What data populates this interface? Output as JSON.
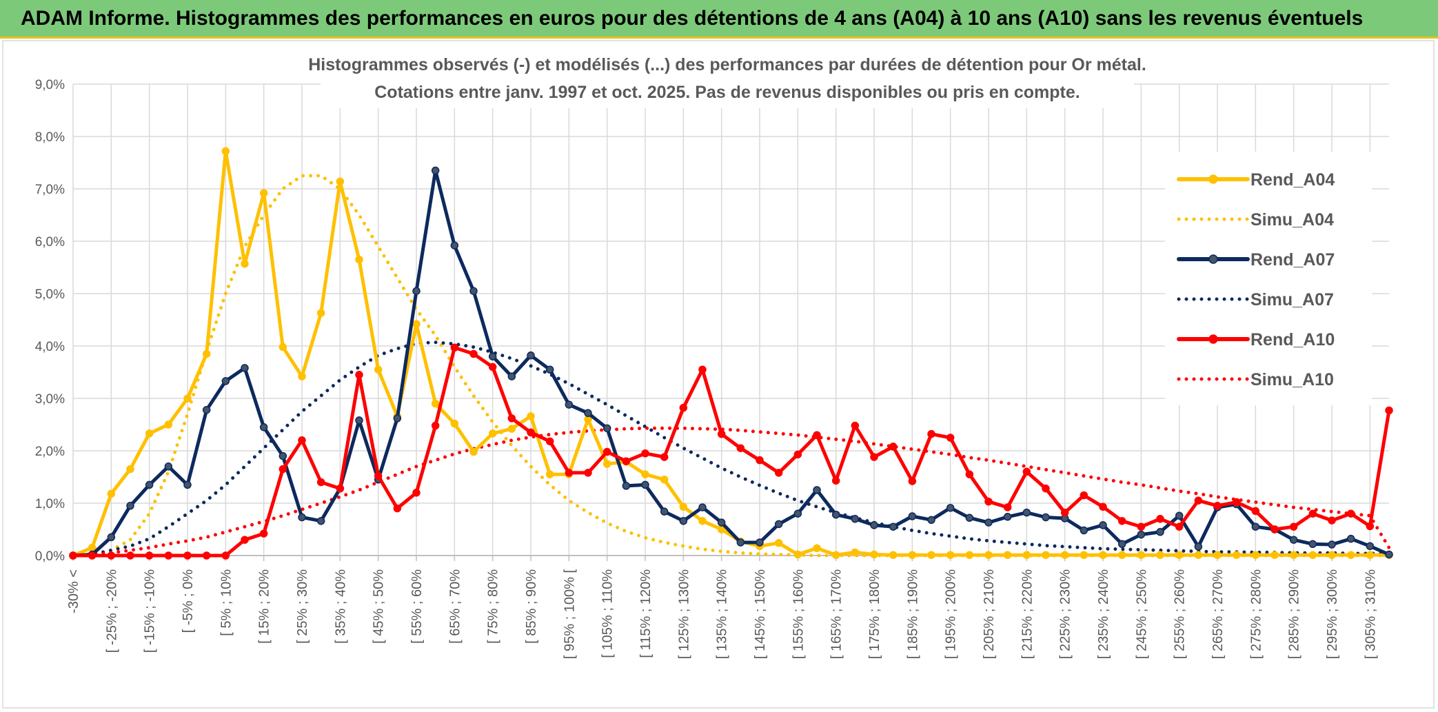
{
  "banner": {
    "title": "ADAM Informe. Histogrammes des performances en euros pour des détentions de 4 ans (A04) à 10 ans (A10) sans les revenus éventuels"
  },
  "chart_data": {
    "type": "line",
    "title_lines": [
      "Histogrammes observés (-) et modélisés (...) des performances par durées de détention pour Or métal.",
      "Cotations entre janv. 1997 et oct. 2025. Pas de revenus disponibles ou pris en compte."
    ],
    "xlabel": "",
    "ylabel": "",
    "ylim": [
      0,
      9
    ],
    "y_tick_values": [
      0,
      1,
      2,
      3,
      4,
      5,
      6,
      7,
      8,
      9
    ],
    "y_tick_labels": [
      "0,0%",
      "1,0%",
      "2,0%",
      "3,0%",
      "4,0%",
      "5,0%",
      "6,0%",
      "7,0%",
      "8,0%",
      "9,0%"
    ],
    "grid": true,
    "legend_position": "right",
    "categories": [
      "-30% <",
      "[ -30% ; -25% [",
      "[ -25% ; -20%",
      "[ -20% ; -15% [",
      "[ -15% ; -10%",
      "[ -10% ; -5% [",
      "[ -5% ; 0%",
      "[ 0% ; 5% [",
      "[ 5% ; 10%",
      "[ 10% ; 15% [",
      "[ 15% ; 20%",
      "[ 20% ; 25% [",
      "[ 25% ; 30%",
      "[ 30% ; 35% [",
      "[ 35% ; 40%",
      "[ 40% ; 45% [",
      "[ 45% ; 50%",
      "[ 50% ; 55% [",
      "[ 55% ; 60%",
      "[ 60% ; 65% [",
      "[ 65% ; 70%",
      "[ 70% ; 75% [",
      "[ 75% ; 80%",
      "[ 80% ; 85% [",
      "[ 85% ; 90%",
      "[ 90% ; 95% [",
      "[ 95% ; 100% [",
      "[ 100% ; 105% [",
      "[ 105% ; 110%",
      "[ 110% ; 115% [",
      "[ 115% ; 120%",
      "[ 120% ; 125% [",
      "[ 125% ; 130%",
      "[ 130% ; 135% [",
      "[ 135% ; 140%",
      "[ 140% ; 145% [",
      "[ 145% ; 150%",
      "[ 150% ; 155% [",
      "[ 155% ; 160%",
      "[ 160% ; 165% [",
      "[ 165% ; 170%",
      "[ 170% ; 175% [",
      "[ 175% ; 180%",
      "[ 180% ; 185% [",
      "[ 185% ; 190%",
      "[ 190% ; 195% [",
      "[ 195% ; 200%",
      "[ 200% ; 205% [",
      "[ 205% ; 210%",
      "[ 210% ; 215% [",
      "[ 215% ; 220%",
      "[ 220% ; 225% [",
      "[ 225% ; 230%",
      "[ 230% ; 235% [",
      "[ 235% ; 240%",
      "[ 240% ; 245% [",
      "[ 245% ; 250%",
      "[ 250% ; 255% [",
      "[ 255% ; 260%",
      "[ 260% ; 265% [",
      "[ 265% ; 270%",
      "[ 270% ; 275% [",
      "[ 275% ; 280%",
      "[ 280% ; 285% [",
      "[ 285% ; 290%",
      "[ 290% ; 295% [",
      "[ 295% ; 300%",
      "[ 300% ; 305% [",
      "[ 305% ; 310%",
      "[ 310% ; 315% ["
    ],
    "visible_label_indices": [
      0,
      2,
      4,
      6,
      8,
      10,
      12,
      14,
      16,
      18,
      20,
      22,
      24,
      26,
      28,
      30,
      32,
      34,
      36,
      38,
      40,
      42,
      44,
      46,
      48,
      50,
      52,
      54,
      56,
      58,
      60,
      62,
      64,
      66,
      68
    ],
    "series": [
      {
        "name": "Rend_A04",
        "color": "#ffc000",
        "style": "solid",
        "markers": true,
        "values": [
          0,
          0.15,
          1.18,
          1.65,
          2.33,
          2.5,
          3.0,
          3.85,
          7.72,
          5.57,
          6.92,
          3.98,
          3.42,
          4.63,
          7.14,
          5.65,
          3.55,
          2.66,
          4.42,
          2.9,
          2.52,
          1.98,
          2.33,
          2.42,
          2.66,
          1.55,
          1.55,
          2.6,
          1.75,
          1.79,
          1.55,
          1.45,
          0.93,
          0.66,
          0.5,
          0.27,
          0.18,
          0.24,
          0.02,
          0.14,
          0.01,
          0.06,
          0.02,
          0.01,
          0.01,
          0.01,
          0.01,
          0.01,
          0.01,
          0.01,
          0.01,
          0.01,
          0.01,
          0.01,
          0.01,
          0.01,
          0.01,
          0.01,
          0.01,
          0.01,
          0.01,
          0.01,
          0.01,
          0.01,
          0.01,
          0.01,
          0.01,
          0.01,
          0.01,
          0.01
        ]
      },
      {
        "name": "Simu_A04",
        "color": "#ffc000",
        "style": "dotted",
        "markers": false,
        "values": [
          0.0,
          0.03,
          0.1,
          0.3,
          0.8,
          1.6,
          2.7,
          3.9,
          5.0,
          5.9,
          6.5,
          7.0,
          7.25,
          7.25,
          7.0,
          6.5,
          5.9,
          5.3,
          4.7,
          4.2,
          3.6,
          3.05,
          2.55,
          2.1,
          1.7,
          1.35,
          1.05,
          0.82,
          0.62,
          0.46,
          0.34,
          0.25,
          0.18,
          0.12,
          0.08,
          0.05,
          0.03,
          0.02,
          0.01,
          0,
          0,
          0,
          0,
          0,
          0,
          0,
          0,
          0,
          0,
          0,
          0,
          0,
          0,
          0,
          0,
          0,
          0,
          0,
          0,
          0,
          0,
          0,
          0,
          0,
          0,
          0,
          0,
          0,
          0,
          0
        ]
      },
      {
        "name": "Rend_A07",
        "color": "#0d2a5e",
        "style": "solid",
        "markers": true,
        "marker_color": "#44546a",
        "values": [
          0,
          0.02,
          0.35,
          0.95,
          1.35,
          1.7,
          1.35,
          2.78,
          3.33,
          3.58,
          2.45,
          1.9,
          0.73,
          0.66,
          1.28,
          2.58,
          1.45,
          2.62,
          5.05,
          7.35,
          5.92,
          5.05,
          3.8,
          3.42,
          3.82,
          3.55,
          2.88,
          2.72,
          2.43,
          1.33,
          1.35,
          0.84,
          0.66,
          0.92,
          0.63,
          0.25,
          0.25,
          0.6,
          0.8,
          1.25,
          0.78,
          0.7,
          0.58,
          0.55,
          0.75,
          0.68,
          0.91,
          0.72,
          0.63,
          0.74,
          0.82,
          0.73,
          0.71,
          0.48,
          0.58,
          0.22,
          0.4,
          0.45,
          0.76,
          0.17,
          0.92,
          0.98,
          0.55,
          0.5,
          0.3,
          0.22,
          0.21,
          0.32,
          0.18,
          0.02
        ]
      },
      {
        "name": "Simu_A07",
        "color": "#0d2a5e",
        "style": "dotted",
        "markers": false,
        "values": [
          0.0,
          0.02,
          0.1,
          0.18,
          0.32,
          0.55,
          0.8,
          1.05,
          1.35,
          1.7,
          2.05,
          2.4,
          2.75,
          3.05,
          3.35,
          3.6,
          3.82,
          3.95,
          4.05,
          4.07,
          4.04,
          3.98,
          3.88,
          3.76,
          3.62,
          3.46,
          3.28,
          3.08,
          2.88,
          2.67,
          2.46,
          2.25,
          2.05,
          1.86,
          1.67,
          1.5,
          1.34,
          1.19,
          1.05,
          0.93,
          0.82,
          0.72,
          0.63,
          0.55,
          0.48,
          0.42,
          0.37,
          0.32,
          0.28,
          0.25,
          0.22,
          0.19,
          0.17,
          0.15,
          0.13,
          0.12,
          0.11,
          0.1,
          0.09,
          0.08,
          0.07,
          0.07,
          0.06,
          0.06,
          0.05,
          0.05,
          0.05,
          0.04,
          0.04,
          0.04
        ]
      },
      {
        "name": "Rend_A10",
        "color": "#ff0000",
        "style": "solid",
        "markers": true,
        "values": [
          0,
          0,
          0,
          0,
          0,
          0,
          0,
          0,
          0,
          0.3,
          0.42,
          1.65,
          2.2,
          1.4,
          1.28,
          3.45,
          1.52,
          0.9,
          1.2,
          2.48,
          3.97,
          3.85,
          3.6,
          2.62,
          2.35,
          2.18,
          1.58,
          1.58,
          1.98,
          1.8,
          1.95,
          1.88,
          2.82,
          3.55,
          2.32,
          2.05,
          1.82,
          1.58,
          1.93,
          2.3,
          1.43,
          2.48,
          1.88,
          2.08,
          1.42,
          2.32,
          2.25,
          1.55,
          1.03,
          0.92,
          1.6,
          1.28,
          0.82,
          1.15,
          0.93,
          0.66,
          0.55,
          0.7,
          0.55,
          1.05,
          0.95,
          1.02,
          0.85,
          0.5,
          0.55,
          0.8,
          0.67,
          0.8,
          0.56,
          2.77
        ]
      },
      {
        "name": "Simu_A10",
        "color": "#ff0000",
        "style": "dotted",
        "markers": false,
        "values": [
          0.0,
          0.02,
          0.05,
          0.1,
          0.15,
          0.22,
          0.28,
          0.35,
          0.45,
          0.55,
          0.65,
          0.76,
          0.88,
          1.0,
          1.12,
          1.25,
          1.4,
          1.55,
          1.7,
          1.82,
          1.94,
          2.04,
          2.12,
          2.2,
          2.26,
          2.31,
          2.35,
          2.38,
          2.4,
          2.42,
          2.43,
          2.43,
          2.43,
          2.42,
          2.41,
          2.39,
          2.36,
          2.33,
          2.3,
          2.26,
          2.22,
          2.18,
          2.13,
          2.08,
          2.03,
          1.98,
          1.93,
          1.87,
          1.82,
          1.76,
          1.7,
          1.64,
          1.58,
          1.52,
          1.46,
          1.4,
          1.35,
          1.29,
          1.23,
          1.18,
          1.12,
          1.07,
          1.02,
          0.97,
          0.92,
          0.88,
          0.84,
          0.8,
          0.76,
          0.15
        ]
      }
    ]
  }
}
